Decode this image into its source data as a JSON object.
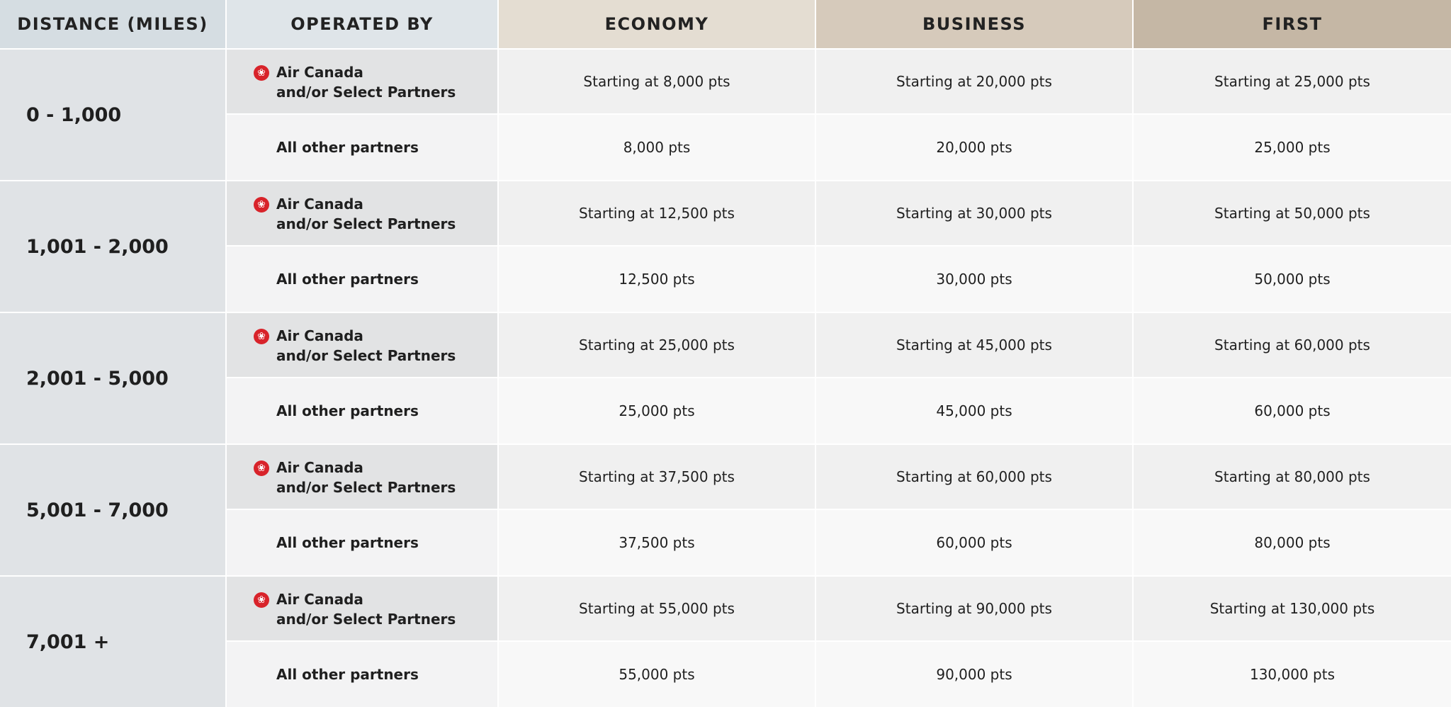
{
  "header": {
    "distance": "DISTANCE (MILES)",
    "operated_by": "OPERATED BY",
    "economy": "ECONOMY",
    "business": "BUSINESS",
    "first": "FIRST"
  },
  "header_colors": {
    "distance": "#d5dde2",
    "operated_by": "#dfe5e9",
    "economy": "#e4ddd2",
    "business": "#d6cabb",
    "first": "#c5b7a5"
  },
  "operator_labels": {
    "air_canada_line1": "Air Canada",
    "air_canada_line2": "and/or Select Partners",
    "other": "All other partners",
    "leaf_icon": "maple-leaf-icon",
    "leaf_color": "#d8232a"
  },
  "chart_data": {
    "type": "table",
    "columns": [
      "DISTANCE (MILES)",
      "OPERATED BY",
      "ECONOMY",
      "BUSINESS",
      "FIRST"
    ],
    "rows": [
      {
        "distance": "0 - 1,000",
        "air_canada": {
          "economy": "Starting at 8,000 pts",
          "business": "Starting at 20,000 pts",
          "first": "Starting at 25,000 pts"
        },
        "other": {
          "economy": "8,000 pts",
          "business": "20,000 pts",
          "first": "25,000 pts"
        }
      },
      {
        "distance": "1,001 - 2,000",
        "air_canada": {
          "economy": "Starting at 12,500 pts",
          "business": "Starting at 30,000 pts",
          "first": "Starting at 50,000 pts"
        },
        "other": {
          "economy": "12,500 pts",
          "business": "30,000 pts",
          "first": "50,000 pts"
        }
      },
      {
        "distance": "2,001 - 5,000",
        "air_canada": {
          "economy": "Starting at 25,000 pts",
          "business": "Starting at 45,000 pts",
          "first": "Starting at 60,000 pts"
        },
        "other": {
          "economy": "25,000 pts",
          "business": "45,000 pts",
          "first": "60,000 pts"
        }
      },
      {
        "distance": "5,001 - 7,000",
        "air_canada": {
          "economy": "Starting at 37,500 pts",
          "business": "Starting at 60,000 pts",
          "first": "Starting at 80,000 pts"
        },
        "other": {
          "economy": "37,500 pts",
          "business": "60,000 pts",
          "first": "80,000 pts"
        }
      },
      {
        "distance": "7,001 +",
        "air_canada": {
          "economy": "Starting at 55,000 pts",
          "business": "Starting at 90,000 pts",
          "first": "Starting at 130,000 pts"
        },
        "other": {
          "economy": "55,000 pts",
          "business": "90,000 pts",
          "first": "130,000 pts"
        }
      }
    ]
  }
}
